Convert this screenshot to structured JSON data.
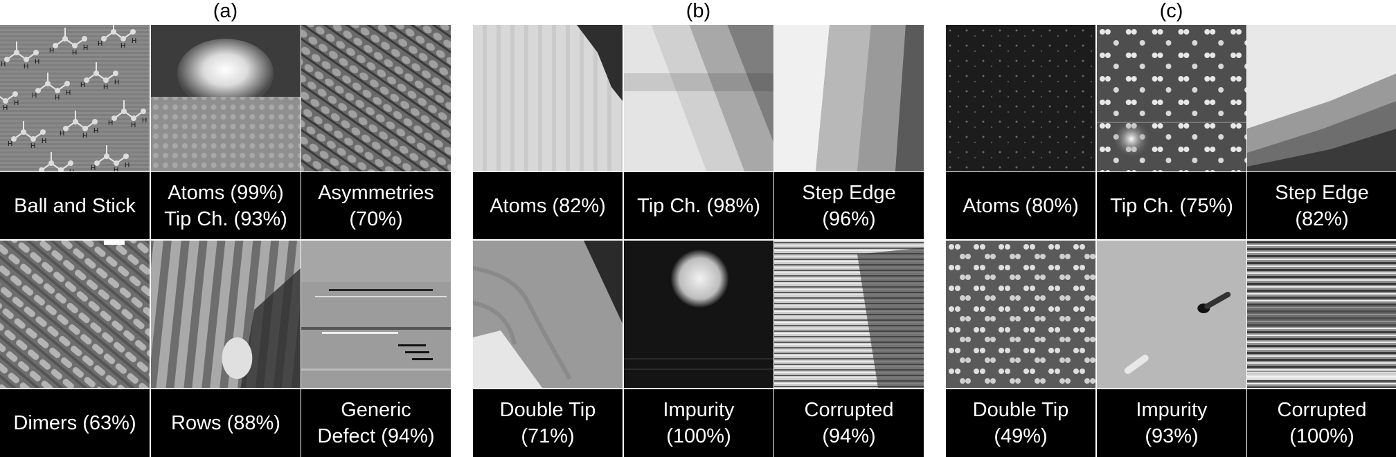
{
  "panels": [
    {
      "label": "(a)",
      "tiles": [
        {
          "caption": "Ball and Stick",
          "image": "ball-and-stick"
        },
        {
          "caption": "Atoms (99%)\nTip Ch. (93%)",
          "image": "tip-change-atoms"
        },
        {
          "caption": "Asymmetries\n(70%)",
          "image": "asymmetries"
        },
        {
          "caption": "Dimers (63%)",
          "image": "dimers"
        },
        {
          "caption": "Rows (88%)",
          "image": "rows"
        },
        {
          "caption": "Generic\nDefect (94%)",
          "image": "generic-defect"
        }
      ]
    },
    {
      "label": "(b)",
      "tiles": [
        {
          "caption": "Atoms (82%)",
          "image": "atoms-terrace"
        },
        {
          "caption": "Tip Ch. (98%)",
          "image": "tip-change-steps"
        },
        {
          "caption": "Step Edge\n(96%)",
          "image": "step-edge"
        },
        {
          "caption": "Double Tip\n(71%)",
          "image": "double-tip"
        },
        {
          "caption": "Impurity\n(100%)",
          "image": "impurity-blob"
        },
        {
          "caption": "Corrupted\n(94%)",
          "image": "corrupted"
        }
      ]
    },
    {
      "label": "(c)",
      "tiles": [
        {
          "caption": "Atoms (80%)",
          "image": "atoms-dark"
        },
        {
          "caption": "Tip Ch. (75%)",
          "image": "tip-change-adsorbates"
        },
        {
          "caption": "Step Edge\n(82%)",
          "image": "step-edge-layers"
        },
        {
          "caption": "Double Tip\n(49%)",
          "image": "double-tip-pairs"
        },
        {
          "caption": "Impurity\n(93%)",
          "image": "impurity-small"
        },
        {
          "caption": "Corrupted\n(100%)",
          "image": "corrupted-streaks"
        }
      ]
    }
  ]
}
